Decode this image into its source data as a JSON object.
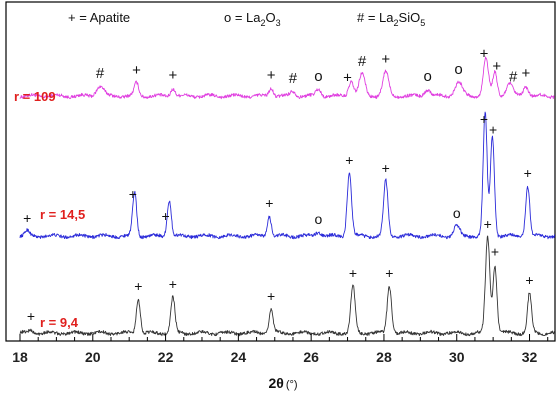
{
  "chart_data": {
    "type": "line",
    "title": "",
    "xlabel": "2θ (°)",
    "xlabel_main": "2θ",
    "xlabel_unit": "(°)",
    "ylabel": "",
    "xlim": [
      18,
      32.7
    ],
    "xticks": [
      18,
      20,
      22,
      24,
      26,
      28,
      30,
      32
    ],
    "legend": [
      {
        "symbol": "+",
        "label": "Apatite",
        "parts": [
          {
            "text": "+ = Apatite"
          }
        ]
      },
      {
        "symbol": "o",
        "label": "La2O3",
        "parts": [
          {
            "text": "o = La"
          },
          {
            "text": "2",
            "sub": true
          },
          {
            "text": "O"
          },
          {
            "text": "3",
            "sub": true
          }
        ]
      },
      {
        "symbol": "#",
        "label": "La2SiO5",
        "parts": [
          {
            "text": "# = La"
          },
          {
            "text": "2",
            "sub": true
          },
          {
            "text": "SiO"
          },
          {
            "text": "5",
            "sub": true
          }
        ]
      }
    ],
    "grid": false,
    "series": [
      {
        "name": "r = 109",
        "color": "#e040e0",
        "label_color": "#e0201e",
        "peaks": [
          {
            "x": 20.2,
            "h": 10,
            "w": 0.1
          },
          {
            "x": 21.2,
            "h": 13,
            "w": 0.06
          },
          {
            "x": 22.2,
            "h": 8,
            "w": 0.06
          },
          {
            "x": 24.9,
            "h": 8,
            "w": 0.06
          },
          {
            "x": 25.5,
            "h": 5,
            "w": 0.07
          },
          {
            "x": 26.2,
            "h": 7,
            "w": 0.07
          },
          {
            "x": 27.1,
            "h": 15,
            "w": 0.07
          },
          {
            "x": 27.4,
            "h": 22,
            "w": 0.08
          },
          {
            "x": 28.05,
            "h": 24,
            "w": 0.08
          },
          {
            "x": 29.2,
            "h": 7,
            "w": 0.08
          },
          {
            "x": 30.05,
            "h": 14,
            "w": 0.1
          },
          {
            "x": 30.8,
            "h": 38,
            "w": 0.07
          },
          {
            "x": 31.05,
            "h": 24,
            "w": 0.06
          },
          {
            "x": 31.45,
            "h": 12,
            "w": 0.09
          },
          {
            "x": 31.9,
            "h": 10,
            "w": 0.07
          }
        ],
        "markers": [
          {
            "x": 20.2,
            "sym": "#"
          },
          {
            "x": 21.2,
            "sym": "+"
          },
          {
            "x": 22.2,
            "sym": "+"
          },
          {
            "x": 24.9,
            "sym": "+"
          },
          {
            "x": 25.5,
            "sym": "#"
          },
          {
            "x": 26.2,
            "sym": "o"
          },
          {
            "x": 27.0,
            "sym": "+"
          },
          {
            "x": 27.4,
            "sym": "#"
          },
          {
            "x": 28.05,
            "sym": "+"
          },
          {
            "x": 29.2,
            "sym": "o"
          },
          {
            "x": 30.05,
            "sym": "o"
          },
          {
            "x": 30.75,
            "sym": "+"
          },
          {
            "x": 31.1,
            "sym": "+"
          },
          {
            "x": 31.55,
            "sym": "#"
          },
          {
            "x": 31.9,
            "sym": "+"
          }
        ]
      },
      {
        "name": "r = 14,5",
        "color": "#2b2bd9",
        "label_color": "#e0201e",
        "peaks": [
          {
            "x": 18.2,
            "h": 5,
            "w": 0.06
          },
          {
            "x": 21.15,
            "h": 44,
            "w": 0.055
          },
          {
            "x": 22.1,
            "h": 36,
            "w": 0.055
          },
          {
            "x": 24.85,
            "h": 20,
            "w": 0.055
          },
          {
            "x": 26.2,
            "h": 4,
            "w": 0.08
          },
          {
            "x": 27.05,
            "h": 63,
            "w": 0.06
          },
          {
            "x": 28.05,
            "h": 55,
            "w": 0.06
          },
          {
            "x": 30.0,
            "h": 10,
            "w": 0.08
          },
          {
            "x": 30.78,
            "h": 122,
            "w": 0.055
          },
          {
            "x": 30.98,
            "h": 100,
            "w": 0.055
          },
          {
            "x": 31.95,
            "h": 50,
            "w": 0.055
          }
        ],
        "markers": [
          {
            "x": 18.2,
            "sym": "+"
          },
          {
            "x": 21.1,
            "sym": "+"
          },
          {
            "x": 22.0,
            "sym": "+"
          },
          {
            "x": 24.85,
            "sym": "+"
          },
          {
            "x": 26.2,
            "sym": "o"
          },
          {
            "x": 27.05,
            "sym": "+"
          },
          {
            "x": 28.05,
            "sym": "+"
          },
          {
            "x": 30.0,
            "sym": "o"
          },
          {
            "x": 30.75,
            "sym": "+"
          },
          {
            "x": 31.0,
            "sym": "+"
          },
          {
            "x": 31.95,
            "sym": "+"
          }
        ]
      },
      {
        "name": "r = 9,4",
        "color": "#333333",
        "label_color": "#e0201e",
        "peaks": [
          {
            "x": 18.3,
            "h": 3,
            "w": 0.06
          },
          {
            "x": 21.25,
            "h": 34,
            "w": 0.055
          },
          {
            "x": 22.2,
            "h": 36,
            "w": 0.055
          },
          {
            "x": 24.9,
            "h": 24,
            "w": 0.055
          },
          {
            "x": 27.15,
            "h": 47,
            "w": 0.06
          },
          {
            "x": 28.15,
            "h": 47,
            "w": 0.06
          },
          {
            "x": 30.85,
            "h": 96,
            "w": 0.06
          },
          {
            "x": 31.05,
            "h": 68,
            "w": 0.055
          },
          {
            "x": 32.0,
            "h": 40,
            "w": 0.055
          }
        ],
        "markers": [
          {
            "x": 18.3,
            "sym": "+"
          },
          {
            "x": 21.25,
            "sym": "+"
          },
          {
            "x": 22.2,
            "sym": "+"
          },
          {
            "x": 24.9,
            "sym": "+"
          },
          {
            "x": 27.15,
            "sym": "+"
          },
          {
            "x": 28.15,
            "sym": "+"
          },
          {
            "x": 30.85,
            "sym": "+"
          },
          {
            "x": 31.05,
            "sym": "+"
          },
          {
            "x": 32.0,
            "sym": "+"
          }
        ]
      }
    ]
  }
}
